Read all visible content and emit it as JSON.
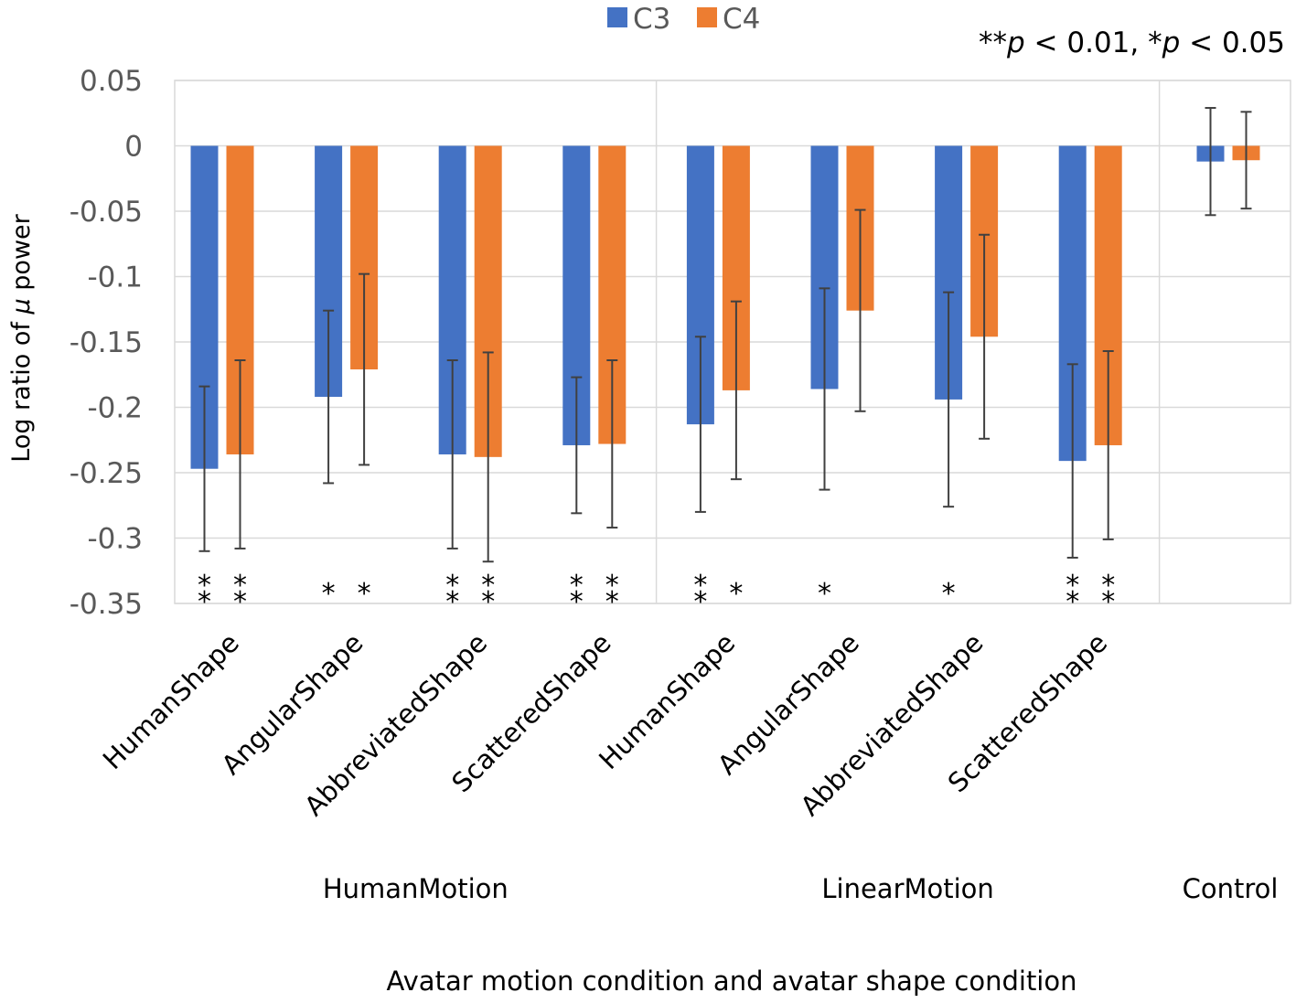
{
  "chart_data": {
    "type": "bar",
    "title": "",
    "xlabel": "Avatar motion condition and avatar shape condition",
    "ylabel_prefix": "Log ratio of ",
    "ylabel_symbol": "μ",
    "ylabel_suffix": " power",
    "ylim": [
      -0.35,
      0.05
    ],
    "yticks": [
      0.05,
      0,
      -0.05,
      -0.1,
      -0.15,
      -0.2,
      -0.25,
      -0.3,
      -0.35
    ],
    "ytick_labels": [
      "0.05",
      "0",
      "-0.05",
      "-0.1",
      "-0.15",
      "-0.2",
      "-0.25",
      "-0.3",
      "-0.35"
    ],
    "grid": true,
    "legend_position": "top-center",
    "significance_note": {
      "double_star": "**",
      "p1": "p",
      "part1": " < 0.01, ",
      "single_star": "*",
      "p2": "p",
      "part2": " < 0.05"
    },
    "categories": [
      "HumanShape",
      "AngularShape",
      "AbbreviatedShape",
      "ScatteredShape",
      "HumanShape",
      "AngularShape",
      "AbbreviatedShape",
      "ScatteredShape",
      ""
    ],
    "groups": [
      {
        "label": "HumanMotion",
        "count": 4
      },
      {
        "label": "LinearMotion",
        "count": 4
      },
      {
        "label": "Control",
        "count": 1
      }
    ],
    "series": [
      {
        "name": "C3",
        "color": "#4472C4",
        "values": [
          -0.247,
          -0.192,
          -0.236,
          -0.229,
          -0.213,
          -0.186,
          -0.194,
          -0.241,
          -0.012
        ],
        "errors": [
          0.063,
          0.066,
          0.072,
          0.052,
          0.067,
          0.077,
          0.082,
          0.074,
          0.041
        ],
        "significance": [
          "**",
          "*",
          "**",
          "**",
          "**",
          "*",
          "*",
          "**",
          ""
        ]
      },
      {
        "name": "C4",
        "color": "#ED7D31",
        "values": [
          -0.236,
          -0.171,
          -0.238,
          -0.228,
          -0.187,
          -0.126,
          -0.146,
          -0.229,
          -0.011
        ],
        "errors": [
          0.072,
          0.073,
          0.08,
          0.064,
          0.068,
          0.077,
          0.078,
          0.072,
          0.037
        ],
        "significance": [
          "**",
          "*",
          "**",
          "**",
          "*",
          "",
          "",
          "**",
          ""
        ]
      }
    ]
  }
}
